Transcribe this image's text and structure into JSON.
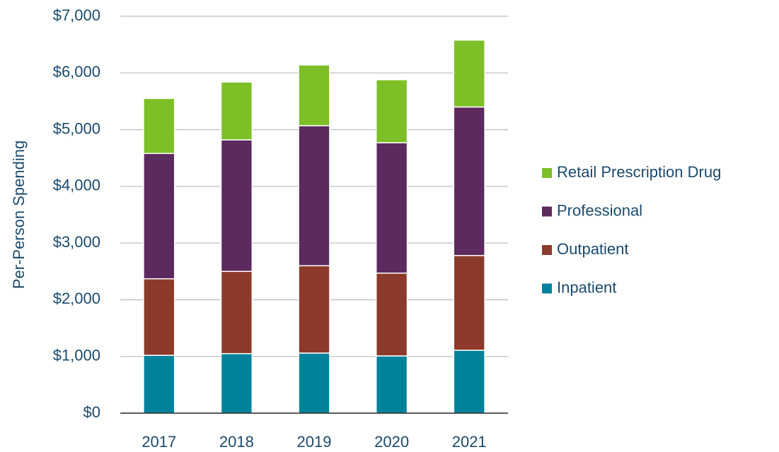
{
  "chart_data": {
    "type": "stacked_bar",
    "ylabel": "Per-Person Spending",
    "categories": [
      "2017",
      "2018",
      "2019",
      "2020",
      "2021"
    ],
    "series": [
      {
        "name": "Inpatient",
        "color": "#00829b",
        "values": [
          1020,
          1050,
          1060,
          1010,
          1110
        ]
      },
      {
        "name": "Outpatient",
        "color": "#8b3a2b",
        "values": [
          1350,
          1450,
          1540,
          1460,
          1670
        ]
      },
      {
        "name": "Professional",
        "color": "#5c2a5e",
        "values": [
          2210,
          2320,
          2470,
          2300,
          2620
        ]
      },
      {
        "name": "Retail Prescription Drug",
        "color": "#7dbf26",
        "values": [
          970,
          1020,
          1070,
          1110,
          1180
        ]
      }
    ],
    "ylim": [
      0,
      7000
    ],
    "yticks": [
      {
        "value": 0,
        "label": "$0"
      },
      {
        "value": 1000,
        "label": "$1,000"
      },
      {
        "value": 2000,
        "label": "$2,000"
      },
      {
        "value": 3000,
        "label": "$3,000"
      },
      {
        "value": 4000,
        "label": "$4,000"
      },
      {
        "value": 5000,
        "label": "$5,000"
      },
      {
        "value": 6000,
        "label": "$6,000"
      },
      {
        "value": 7000,
        "label": "$7,000"
      }
    ],
    "grid": true,
    "legend": "right"
  }
}
